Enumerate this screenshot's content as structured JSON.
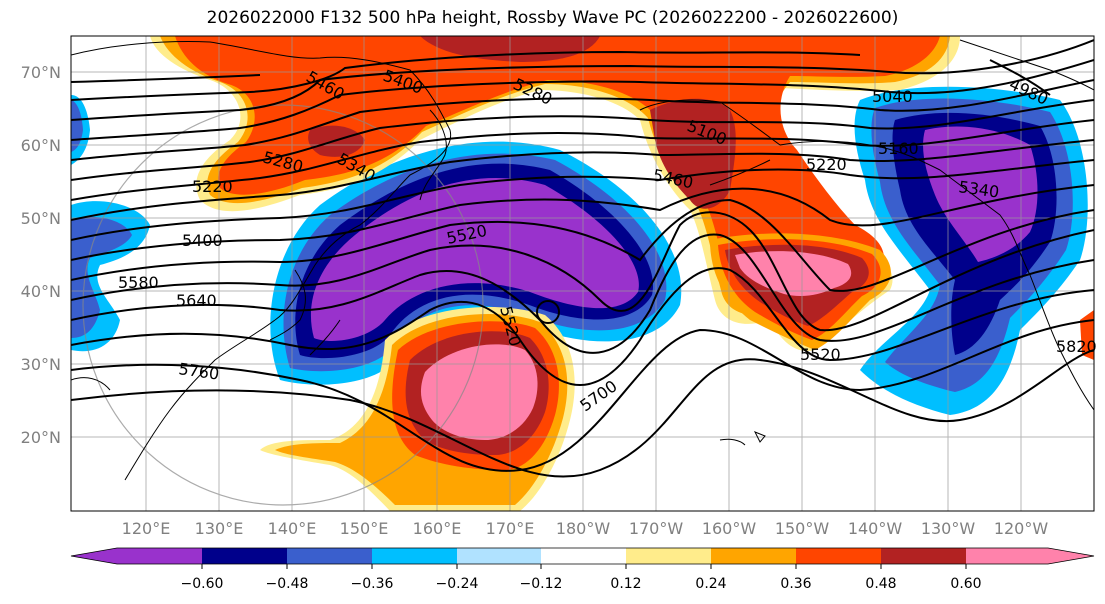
{
  "title": "2026022000 F132 500 hPa height, Rossby Wave PC (2026022200 - 2026022600)",
  "lat_labels": [
    "70°N",
    "60°N",
    "50°N",
    "40°N",
    "30°N",
    "20°N"
  ],
  "lon_labels": [
    "120°E",
    "130°E",
    "140°E",
    "150°E",
    "160°E",
    "170°E",
    "180°W",
    "170°W",
    "160°W",
    "150°W",
    "140°W",
    "130°W",
    "120°W"
  ],
  "contour_labels": [
    "5460",
    "5400",
    "5280",
    "5100",
    "4980",
    "5040",
    "5280",
    "5340",
    "5220",
    "5160",
    "5460",
    "5220",
    "5340",
    "5400",
    "5520",
    "5580",
    "5640",
    "5760",
    "5520",
    "5700",
    "5520",
    "5820"
  ],
  "colorbar": {
    "ticks": [
      "−0.60",
      "−0.48",
      "−0.36",
      "−0.24",
      "−0.12",
      "0.12",
      "0.24",
      "0.36",
      "0.48",
      "0.60"
    ],
    "colors": [
      "#9932cc",
      "#00008b",
      "#3a5fcd",
      "#00bfff",
      "#b0e2ff",
      "#ffffff",
      "#ffec8b",
      "#ffa500",
      "#ff4500",
      "#b22222",
      "#ff82ab"
    ]
  }
}
